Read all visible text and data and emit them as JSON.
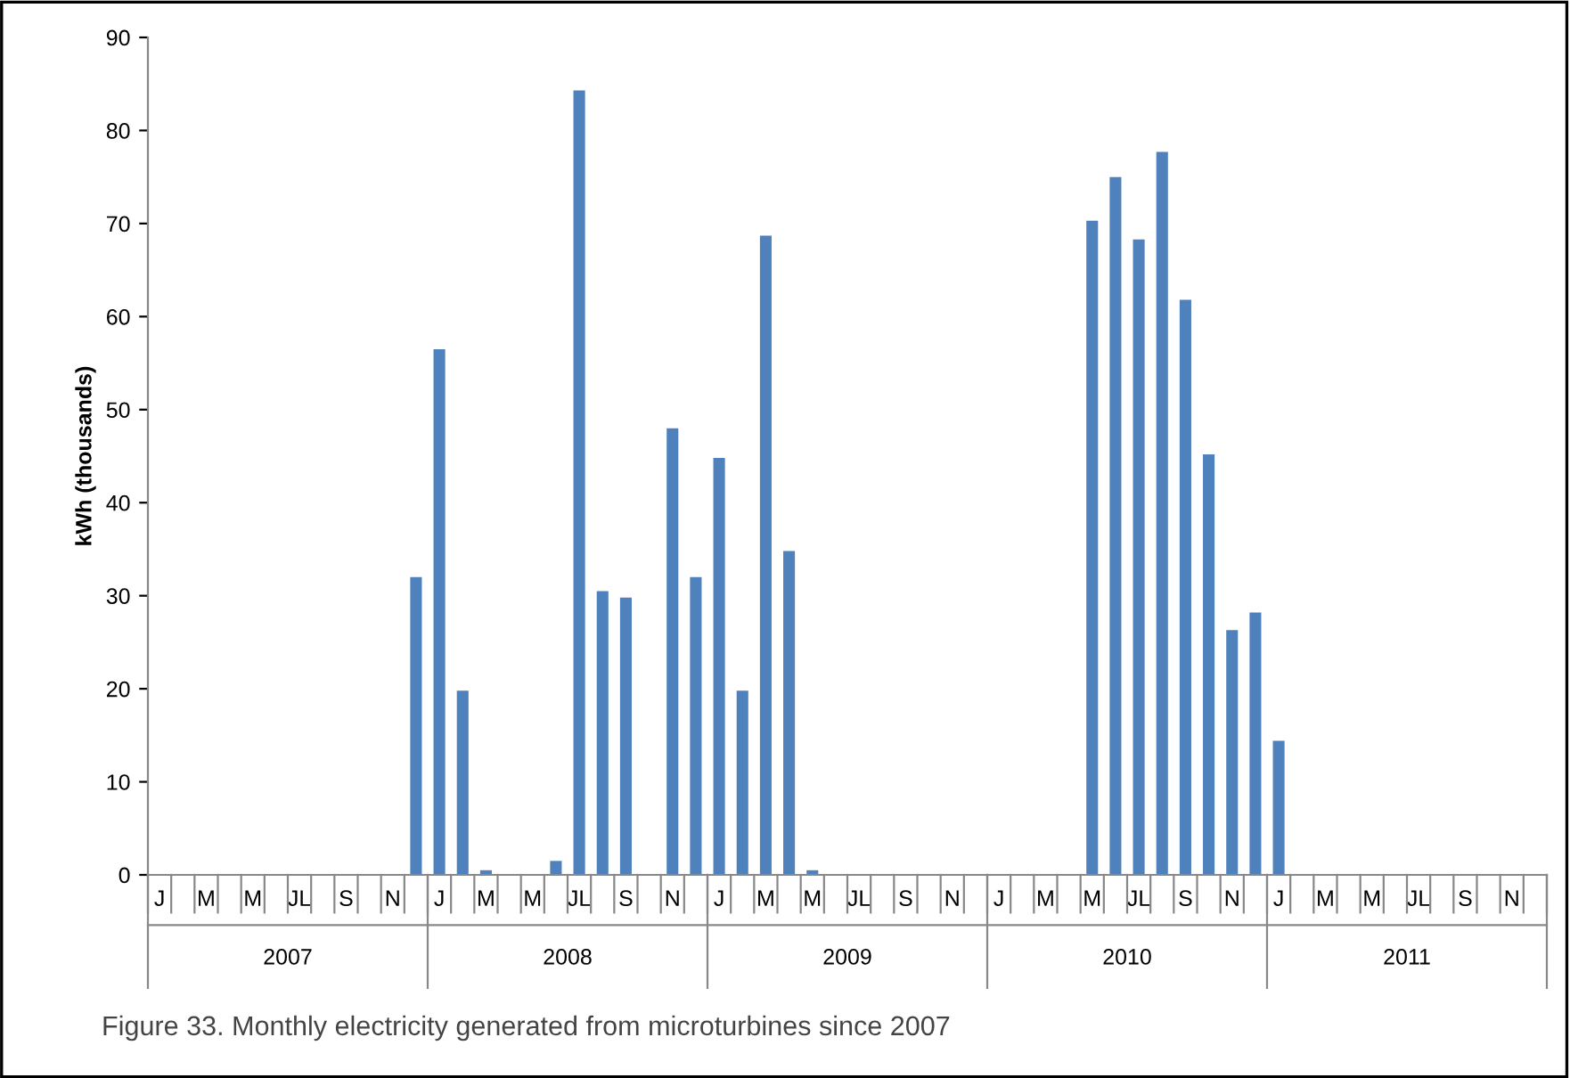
{
  "chart_data": {
    "type": "bar",
    "ylabel": "kWh (thousands)",
    "categories": [
      "J",
      null,
      "M",
      null,
      "M",
      null,
      "JL",
      null,
      "S",
      null,
      "N",
      null,
      "J",
      null,
      "M",
      null,
      "M",
      null,
      "JL",
      null,
      "S",
      null,
      "N",
      null,
      "J",
      null,
      "M",
      null,
      "M",
      null,
      "JL",
      null,
      "S",
      null,
      "N",
      null,
      "J",
      null,
      "M",
      null,
      "M",
      null,
      "JL",
      null,
      "S",
      null,
      "N",
      null,
      "J",
      null,
      "M",
      null,
      "M",
      null,
      "JL",
      null,
      "S",
      null,
      "N",
      null
    ],
    "values": [
      null,
      null,
      null,
      null,
      null,
      null,
      null,
      null,
      null,
      null,
      null,
      32,
      56.5,
      19.8,
      0.5,
      null,
      null,
      1.5,
      84.3,
      30.5,
      29.8,
      null,
      48,
      32,
      44.8,
      19.8,
      68.7,
      34.8,
      0.5,
      null,
      null,
      null,
      null,
      null,
      null,
      null,
      null,
      null,
      null,
      null,
      70.3,
      75,
      68.3,
      77.7,
      61.8,
      45.2,
      26.3,
      28.2,
      14.4,
      null,
      null,
      null,
      null,
      null,
      null,
      null,
      null,
      null,
      null,
      null
    ],
    "color": "#4f81bd",
    "ylim": [
      0,
      90
    ],
    "yticks": [
      0,
      10,
      20,
      30,
      40,
      50,
      60,
      70,
      80,
      90
    ],
    "grid": false,
    "legend": false,
    "annotations": [
      "2007",
      "2008",
      "2009",
      "2010",
      "2011",
      "Figure 33. Monthly electricity generated from microturbines since 2007"
    ]
  }
}
